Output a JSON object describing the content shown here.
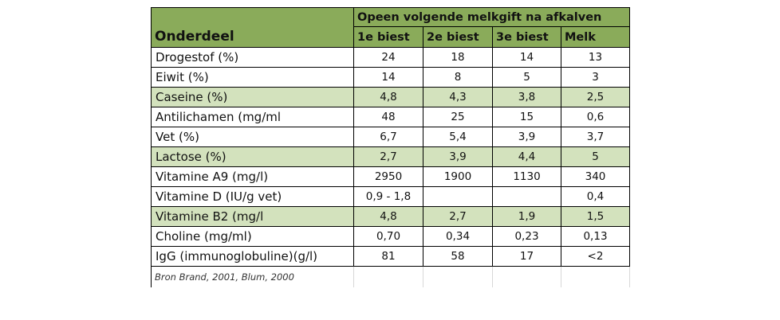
{
  "table": {
    "group_header": "Opeen volgende melkgift na afkalven",
    "part_header": "Onderdeel",
    "columns": [
      "1e biest",
      "2e biest",
      "3e biest",
      "Melk"
    ],
    "rows": [
      {
        "label": "Drogestof (%)",
        "values": [
          "24",
          "18",
          "14",
          "13"
        ],
        "highlight": false
      },
      {
        "label": "Eiwit (%)",
        "values": [
          "14",
          "8",
          "5",
          "3"
        ],
        "highlight": false
      },
      {
        "label": "Caseine (%)",
        "values": [
          "4,8",
          "4,3",
          "3,8",
          "2,5"
        ],
        "highlight": true
      },
      {
        "label": "Antilichamen (mg/ml",
        "values": [
          "48",
          "25",
          "15",
          "0,6"
        ],
        "highlight": false
      },
      {
        "label": "Vet (%)",
        "values": [
          "6,7",
          "5,4",
          "3,9",
          "3,7"
        ],
        "highlight": false
      },
      {
        "label": "Lactose (%)",
        "values": [
          "2,7",
          "3,9",
          "4,4",
          "5"
        ],
        "highlight": true
      },
      {
        "label": "Vitamine A9 (mg/l)",
        "values": [
          "2950",
          "1900",
          "1130",
          "340"
        ],
        "highlight": false
      },
      {
        "label": "Vitamine D (IU/g vet)",
        "values": [
          "0,9 - 1,8",
          "",
          "",
          "0,4"
        ],
        "highlight": false
      },
      {
        "label": "Vitamine B2 (mg/l",
        "values": [
          "4,8",
          "2,7",
          "1,9",
          "1,5"
        ],
        "highlight": true
      },
      {
        "label": "Choline (mg/ml)",
        "values": [
          "0,70",
          "0,34",
          "0,23",
          "0,13"
        ],
        "highlight": false
      },
      {
        "label": "IgG (immunoglobuline)(g/l)",
        "values": [
          "81",
          "58",
          "17",
          "<2"
        ],
        "highlight": false
      }
    ],
    "source": "Bron Brand, 2001, Blum, 2000"
  },
  "colors": {
    "header_green": "#8aab5a",
    "highlight_green": "#d3e2bd",
    "border": "#000000"
  }
}
